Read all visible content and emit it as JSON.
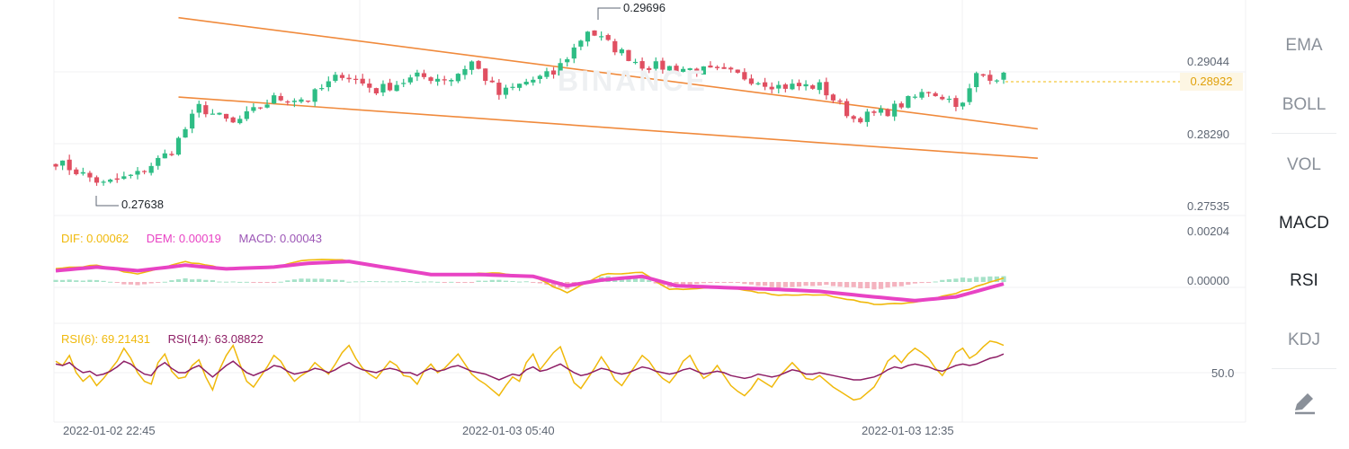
{
  "watermark": "BINANCE",
  "chart_data": [
    {
      "type": "candlestick",
      "yticks": [
        "0.29044",
        "0.28290",
        "0.27535"
      ],
      "ylim": [
        0.2736,
        0.2977
      ],
      "high_label": "0.29696",
      "low_label": "0.27638",
      "last_price": "0.28932",
      "x_labels": [
        "2022-01-02 22:45",
        "2022-01-03 05:40",
        "2022-01-03 12:35"
      ],
      "trendlines": [
        {
          "from": [
            18,
            0.29666
          ],
          "to": [
            144,
            0.2834
          ]
        },
        {
          "from": [
            18,
            0.2872
          ],
          "to": [
            144,
            0.2799
          ]
        }
      ],
      "anchors": [
        [
          0,
          0.2795
        ],
        [
          7,
          0.2768
        ],
        [
          12,
          0.278
        ],
        [
          17,
          0.2808
        ],
        [
          21,
          0.286
        ],
        [
          26,
          0.284
        ],
        [
          32,
          0.287
        ],
        [
          37,
          0.287
        ],
        [
          42,
          0.29
        ],
        [
          47,
          0.288
        ],
        [
          53,
          0.2896
        ],
        [
          58,
          0.2894
        ],
        [
          61,
          0.2914
        ],
        [
          65,
          0.2875
        ],
        [
          69,
          0.289
        ],
        [
          73,
          0.29
        ],
        [
          76,
          0.293
        ],
        [
          78,
          0.2952
        ],
        [
          82,
          0.293
        ],
        [
          86,
          0.291
        ],
        [
          92,
          0.2906
        ],
        [
          99,
          0.29
        ],
        [
          106,
          0.2885
        ],
        [
          112,
          0.2885
        ],
        [
          117,
          0.2846
        ],
        [
          122,
          0.2855
        ],
        [
          128,
          0.288
        ],
        [
          133,
          0.2862
        ],
        [
          135,
          0.2898
        ],
        [
          139,
          0.2896
        ]
      ]
    },
    {
      "type": "line",
      "indicator": "MACD",
      "legend": {
        "dif": "DIF: 0.00062",
        "dem": "DEM: 0.00019",
        "macd": "MACD: 0.00043"
      },
      "yticks": [
        "0.00204",
        "0.00000"
      ],
      "dif_anchors": [
        [
          0,
          0.0007
        ],
        [
          6,
          0.0009
        ],
        [
          12,
          0.0004
        ],
        [
          19,
          0.0011
        ],
        [
          25,
          0.0007
        ],
        [
          32,
          0.0008
        ],
        [
          37,
          0.0012
        ],
        [
          42,
          0.0012
        ],
        [
          47,
          0.0009
        ],
        [
          55,
          0.0004
        ],
        [
          60,
          0.0004
        ],
        [
          64,
          0.0005
        ],
        [
          70,
          0.0003
        ],
        [
          75,
          -0.0006
        ],
        [
          80,
          0.0004
        ],
        [
          86,
          0.0005
        ],
        [
          90,
          -0.0004
        ],
        [
          98,
          -0.0003
        ],
        [
          106,
          -0.0007
        ],
        [
          113,
          -0.0007
        ],
        [
          120,
          -0.0012
        ],
        [
          126,
          -0.0011
        ],
        [
          132,
          -0.0006
        ],
        [
          139,
          0.0002
        ]
      ],
      "dem_anchors": [
        [
          0,
          0.0006
        ],
        [
          6,
          0.0008
        ],
        [
          12,
          0.0006
        ],
        [
          19,
          0.0009
        ],
        [
          25,
          0.0007
        ],
        [
          32,
          0.0008
        ],
        [
          37,
          0.001
        ],
        [
          43,
          0.0011
        ],
        [
          48,
          0.0008
        ],
        [
          55,
          0.0004
        ],
        [
          62,
          0.0004
        ],
        [
          70,
          0.0003
        ],
        [
          75,
          -0.0002
        ],
        [
          80,
          0.0001
        ],
        [
          86,
          0.0003
        ],
        [
          91,
          -0.0002
        ],
        [
          98,
          -0.0003
        ],
        [
          106,
          -0.0004
        ],
        [
          112,
          -0.0005
        ],
        [
          120,
          -0.0008
        ],
        [
          126,
          -0.001
        ],
        [
          132,
          -0.0008
        ],
        [
          139,
          -0.0001
        ]
      ]
    },
    {
      "type": "line",
      "indicator": "RSI",
      "legend": {
        "rsi6": "RSI(6): 69.21431",
        "rsi14": "RSI(14): 63.08822"
      },
      "yticks": [
        "50.0"
      ],
      "rsi6": [
        58,
        55,
        62,
        50,
        44,
        48,
        41,
        46,
        52,
        58,
        67,
        60,
        50,
        44,
        42,
        57,
        63,
        51,
        46,
        47,
        55,
        59,
        47,
        38,
        52,
        62,
        69,
        56,
        44,
        40,
        47,
        54,
        62,
        58,
        50,
        44,
        48,
        51,
        57,
        53,
        49,
        56,
        64,
        69,
        60,
        53,
        49,
        46,
        52,
        58,
        55,
        48,
        47,
        42,
        51,
        56,
        50,
        53,
        58,
        63,
        56,
        49,
        45,
        42,
        38,
        34,
        41,
        47,
        44,
        57,
        63,
        52,
        58,
        64,
        68,
        55,
        43,
        39,
        46,
        53,
        61,
        54,
        45,
        41,
        48,
        55,
        62,
        58,
        51,
        46,
        43,
        49,
        58,
        62,
        53,
        46,
        49,
        55,
        48,
        41,
        37,
        34,
        39,
        46,
        43,
        40,
        47,
        52,
        57,
        52,
        46,
        45,
        48,
        44,
        40,
        37,
        34,
        31,
        32,
        36,
        40,
        48,
        58,
        62,
        57,
        63,
        67,
        64,
        60,
        53,
        48,
        55,
        64,
        67,
        60,
        63,
        68,
        72,
        71,
        69
      ],
      "rsi14": [
        56,
        55,
        57,
        53,
        50,
        51,
        48,
        49,
        51,
        54,
        58,
        56,
        52,
        49,
        48,
        54,
        57,
        53,
        50,
        50,
        53,
        55,
        51,
        47,
        51,
        55,
        58,
        54,
        50,
        48,
        50,
        52,
        55,
        54,
        51,
        49,
        50,
        51,
        53,
        52,
        50,
        52,
        55,
        57,
        54,
        52,
        51,
        50,
        52,
        53,
        52,
        50,
        50,
        48,
        51,
        53,
        51,
        52,
        54,
        55,
        53,
        51,
        50,
        49,
        47,
        45,
        47,
        49,
        48,
        52,
        54,
        51,
        52,
        54,
        56,
        53,
        50,
        48,
        49,
        51,
        53,
        52,
        50,
        49,
        50,
        52,
        54,
        53,
        51,
        50,
        49,
        50,
        52,
        53,
        51,
        49,
        50,
        51,
        50,
        48,
        47,
        46,
        47,
        49,
        48,
        47,
        48,
        50,
        52,
        51,
        49,
        49,
        50,
        49,
        48,
        47,
        46,
        45,
        45,
        46,
        47,
        49,
        52,
        54,
        53,
        55,
        56,
        55,
        54,
        52,
        51,
        53,
        55,
        56,
        55,
        56,
        58,
        60,
        61,
        63
      ]
    }
  ],
  "sidebar": {
    "items": [
      "EMA",
      "BOLL",
      "VOL",
      "MACD",
      "RSI",
      "KDJ"
    ],
    "active": [
      "MACD",
      "RSI"
    ],
    "draw_icon": "pencil-draw-icon"
  },
  "colors": {
    "up": "#2ebd85",
    "down": "#e04f61",
    "trend": "#f08a3c",
    "dif": "#f0b90b",
    "dem": "#e843c4",
    "macd_text": "#9c56b6",
    "rsi6": "#f0b90b",
    "rsi14": "#8e1f66",
    "hist_up": "#a6e2c8",
    "hist_down": "#f4b3bf"
  }
}
